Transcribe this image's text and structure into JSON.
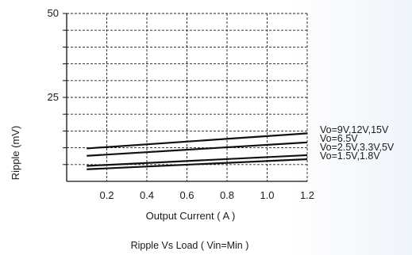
{
  "chart_data": {
    "type": "line",
    "caption": "Ripple  Vs Load ( Vin=Min )",
    "xlabel": "Output Current ( A )",
    "ylabel": "Ripple (mV)",
    "xlim": [
      0,
      1.2
    ],
    "ylim": [
      0,
      50
    ],
    "x_ticks": [
      "0.2",
      "0.4",
      "0.6",
      "0.8",
      "1.0",
      "1.2"
    ],
    "x_tick_values": [
      0.2,
      0.4,
      0.6,
      0.8,
      1.0,
      1.2
    ],
    "y_ticks": [
      "25",
      "50"
    ],
    "y_tick_values": [
      25,
      50
    ],
    "grid": true,
    "legend_placement": "right of plot, inline at line ends",
    "series": [
      {
        "name": "Vo=9V,12V,15V",
        "x": [
          0.1,
          1.2
        ],
        "y": [
          9.8,
          14.3
        ]
      },
      {
        "name": "Vo=6.5V",
        "x": [
          0.1,
          1.2
        ],
        "y": [
          7.6,
          11.6
        ]
      },
      {
        "name": "Vo=2.5V,3.3V,5V",
        "x": [
          0.1,
          1.2
        ],
        "y": [
          4.6,
          7.8
        ]
      },
      {
        "name": "Vo=1.5V,1.8V",
        "x": [
          0.1,
          1.2
        ],
        "y": [
          3.6,
          6.6
        ]
      }
    ]
  }
}
